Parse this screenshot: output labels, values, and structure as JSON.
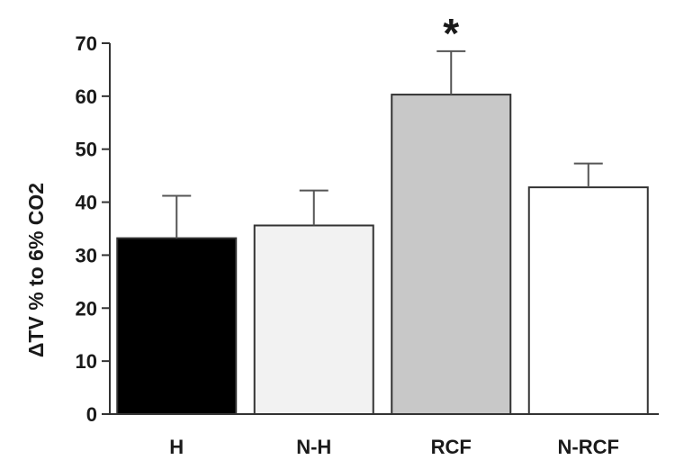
{
  "chart_data": {
    "type": "bar",
    "categories": [
      "H",
      "N-H",
      "RCF",
      "N-RCF"
    ],
    "values": [
      33.2,
      35.6,
      60.3,
      42.8
    ],
    "errors": [
      8.0,
      6.6,
      8.2,
      4.5
    ],
    "colors": [
      "#000000",
      "#f2f2f2",
      "#c8c8c8",
      "#ffffff"
    ],
    "ylabel": "ΔTV % to 6% CO2",
    "ylim": [
      0,
      70
    ],
    "yticks": [
      0,
      10,
      20,
      30,
      40,
      50,
      60,
      70
    ],
    "annotations": [
      {
        "category": "RCF",
        "text": "*"
      }
    ],
    "grid": false,
    "legend": "none"
  }
}
